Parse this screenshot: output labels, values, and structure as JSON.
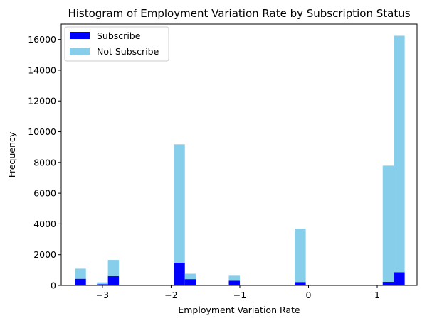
{
  "chart_data": {
    "type": "bar",
    "stacked": true,
    "title": "Histogram of Employment Variation Rate by Subscription Status",
    "xlabel": "Employment Variation Rate",
    "ylabel": "Frequency",
    "xlim": [
      -3.6,
      1.58
    ],
    "ylim": [
      0,
      17000
    ],
    "bin_width": 0.16,
    "x_ticks": [
      -3,
      -2,
      -1,
      0,
      1
    ],
    "x_tick_labels": [
      "−3",
      "−2",
      "−1",
      "0",
      "1"
    ],
    "y_ticks": [
      0,
      2000,
      4000,
      6000,
      8000,
      10000,
      12000,
      14000,
      16000
    ],
    "y_tick_labels": [
      "0",
      "2000",
      "4000",
      "6000",
      "8000",
      "10000",
      "12000",
      "14000",
      "16000"
    ],
    "legend_position": "top-left",
    "bin_left_edges": [
      -3.4,
      -3.08,
      -2.92,
      -1.96,
      -1.8,
      -1.16,
      -0.2,
      1.08,
      1.24
    ],
    "series": [
      {
        "name": "Subscribe",
        "color": "#0000ff",
        "values": [
          430,
          80,
          600,
          1480,
          410,
          300,
          220,
          230,
          860
        ]
      },
      {
        "name": "Not Subscribe",
        "color": "#87ceeb",
        "values": [
          660,
          120,
          1060,
          7700,
          350,
          330,
          3470,
          7560,
          15380
        ]
      }
    ]
  }
}
